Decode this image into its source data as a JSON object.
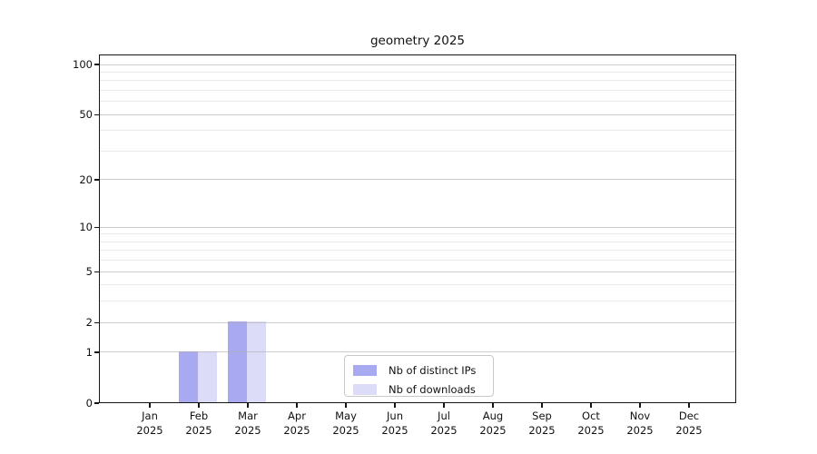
{
  "chart_data": {
    "type": "bar",
    "title": "geometry 2025",
    "categories": [
      "Jan",
      "Feb",
      "Mar",
      "Apr",
      "May",
      "Jun",
      "Jul",
      "Aug",
      "Sep",
      "Oct",
      "Nov",
      "Dec"
    ],
    "year_label": "2025",
    "series": [
      {
        "name": "Nb of distinct IPs",
        "color": "#a9a9f2",
        "values": [
          0,
          1,
          2,
          0,
          0,
          0,
          0,
          0,
          0,
          0,
          0,
          0
        ]
      },
      {
        "name": "Nb of downloads",
        "color": "#dcdcf8",
        "values": [
          0,
          1,
          2,
          0,
          0,
          0,
          0,
          0,
          0,
          0,
          0,
          0
        ]
      }
    ],
    "y_scale": "log10(1+v)",
    "y_major_ticks": [
      0,
      1,
      2,
      5,
      10,
      20,
      50,
      100
    ],
    "y_minor_ticks": [
      3,
      4,
      6,
      7,
      8,
      9,
      30,
      40,
      60,
      70,
      80,
      90
    ],
    "ylim": [
      0,
      115
    ],
    "xlabel": "",
    "ylabel": "",
    "grid": "horizontal",
    "legend": {
      "position": "bottom-center",
      "entries": [
        "Nb of distinct IPs",
        "Nb of downloads"
      ]
    },
    "colors": {
      "background": "#ffffff",
      "spine": "#151515",
      "major_grid": "#c9c9c9",
      "minor_grid": "#ededed",
      "text": "#111111"
    }
  }
}
